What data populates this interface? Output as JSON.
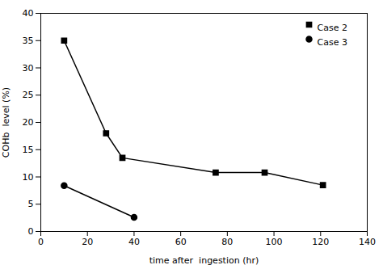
{
  "chart_data": {
    "type": "line",
    "xlabel": "time after  ingestion (hr)",
    "ylabel": "COHb  level (%)",
    "series": [
      {
        "name": "Case 2",
        "color": "#000000",
        "marker": "square",
        "line_style": "solid",
        "x": [
          10,
          28,
          35,
          75,
          96,
          121
        ],
        "values": [
          35,
          18,
          13.5,
          10.8,
          10.8,
          8.5
        ]
      },
      {
        "name": "Case 3",
        "color": "#000000",
        "marker": "circle",
        "line_style": "solid",
        "x": [
          10,
          40
        ],
        "values": [
          8.4,
          2.6
        ]
      }
    ],
    "xlim": [
      0,
      140
    ],
    "ylim": [
      0,
      40
    ],
    "xticks": [
      0,
      20,
      40,
      60,
      80,
      100,
      120,
      140
    ],
    "yticks": [
      0,
      5,
      10,
      15,
      20,
      25,
      30,
      35,
      40
    ],
    "grid": false,
    "legend": "upper right"
  }
}
